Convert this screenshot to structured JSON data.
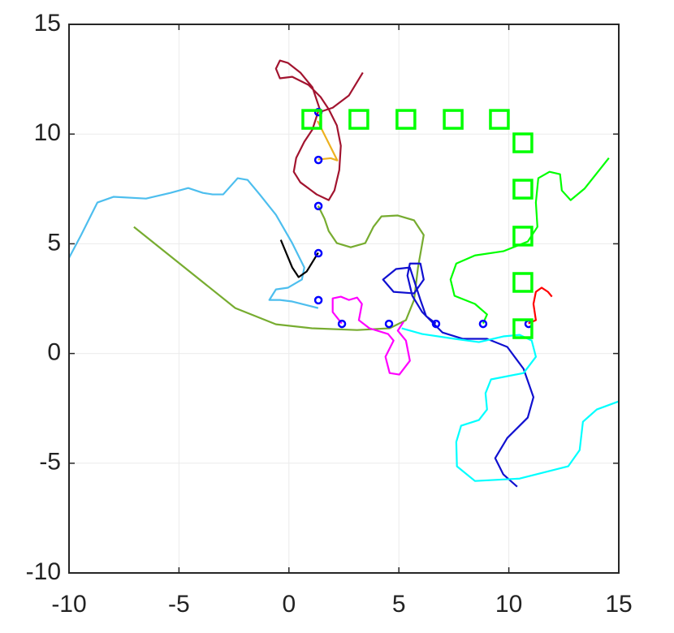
{
  "chart_data": {
    "type": "line",
    "grid": true,
    "xlim": [
      -10,
      15
    ],
    "ylim": [
      -10,
      15
    ],
    "xticks": [
      -10,
      -5,
      0,
      5,
      10,
      15
    ],
    "yticks": [
      -10,
      -5,
      0,
      5,
      10,
      15
    ],
    "series": [
      {
        "color": "#a2142f",
        "marker": "none",
        "x": [
          3.36,
          2.73,
          1.99,
          1.44,
          1.07,
          0.52,
          -0.04,
          -0.41,
          -0.59,
          -0.41,
          0.15,
          0.89,
          1.44,
          1.81,
          2.18,
          2.36,
          2.29,
          2.07,
          1.81,
          1.26,
          0.52,
          0.22,
          0.33,
          0.7,
          1.07,
          1.33
        ],
        "values": [
          12.8,
          11.76,
          11.2,
          11.02,
          12.13,
          12.8,
          13.24,
          13.35,
          12.98,
          12.54,
          12.61,
          12.24,
          11.69,
          11.13,
          10.39,
          9.47,
          8.36,
          7.43,
          6.99,
          7.25,
          7.8,
          8.28,
          8.91,
          9.65,
          10.21,
          11.02
        ]
      },
      {
        "color": "#edb120",
        "marker": "none",
        "x": [
          1.33,
          1.9,
          2.2,
          1.9,
          1.5,
          1.3
        ],
        "values": [
          8.84,
          8.9,
          8.8,
          9.4,
          10.2,
          10.6
        ]
      },
      {
        "color": "#4dbeee",
        "marker": "none",
        "x": [
          -10.0,
          -9.45,
          -8.71,
          -7.98,
          -6.5,
          -5.39,
          -4.58,
          -3.91,
          -3.47,
          -2.99,
          -2.33,
          -1.88,
          -1.33,
          -0.59,
          0.15,
          0.7,
          0.59,
          -0.04,
          -0.59,
          -0.89,
          -0.41,
          0.15,
          1.33
        ],
        "values": [
          4.36,
          5.4,
          6.88,
          7.14,
          7.06,
          7.32,
          7.54,
          7.32,
          7.25,
          7.25,
          7.99,
          7.91,
          7.25,
          6.32,
          5.03,
          3.92,
          3.37,
          3.0,
          2.92,
          2.44,
          2.44,
          2.37,
          2.07
        ]
      },
      {
        "color": "#77ac30",
        "marker": "none",
        "x": [
          -7.05,
          -2.44,
          -0.59,
          1.04,
          3.1,
          4.58,
          5.32,
          5.69,
          5.87,
          6.13,
          5.69,
          4.95,
          4.21,
          3.84,
          3.47,
          2.81,
          2.18,
          1.81,
          1.62,
          1.33
        ],
        "values": [
          5.77,
          2.07,
          1.33,
          1.15,
          1.07,
          1.15,
          1.52,
          2.44,
          3.92,
          5.4,
          6.07,
          6.29,
          6.25,
          5.77,
          5.03,
          4.84,
          5.03,
          5.58,
          6.14,
          6.73
        ]
      },
      {
        "color": "#000000",
        "marker": "none",
        "x": [
          -0.37,
          0.15,
          0.44,
          0.81,
          1.33
        ],
        "values": [
          5.18,
          3.92,
          3.48,
          3.74,
          4.59
        ]
      },
      {
        "color": "#ff00ff",
        "marker": "none",
        "x": [
          2.4,
          1.99,
          1.99,
          2.36,
          2.73,
          3.1,
          3.32,
          3.18,
          3.66,
          4.51,
          4.76,
          4.39,
          4.58,
          5.02,
          5.5,
          5.32,
          4.95,
          5.21
        ],
        "values": [
          1.37,
          1.89,
          2.51,
          2.59,
          2.44,
          2.55,
          2.26,
          1.52,
          1.15,
          0.89,
          0.59,
          -0.15,
          -0.89,
          -0.96,
          -0.33,
          0.59,
          1.04,
          1.44
        ]
      },
      {
        "color": "#1010d0",
        "marker": "none",
        "x": [
          6.68,
          6.24,
          5.98,
          5.5,
          4.87,
          4.28,
          4.76,
          5.69,
          6.13,
          5.98,
          5.5,
          5.39,
          5.61,
          6.06,
          6.98,
          7.9,
          9.01,
          9.93,
          10.67,
          11.12,
          10.86,
          9.93,
          9.38,
          9.75,
          10.38
        ],
        "values": [
          1.37,
          1.7,
          2.44,
          3.92,
          3.85,
          3.37,
          2.81,
          2.74,
          3.37,
          4.1,
          4.1,
          3.55,
          2.63,
          1.89,
          0.96,
          0.67,
          0.67,
          0.3,
          -0.7,
          -1.99,
          -2.92,
          -3.85,
          -4.77,
          -5.51,
          -6.07
        ]
      },
      {
        "color": "#00ffff",
        "marker": "none",
        "x": [
          5.13,
          6.06,
          7.53,
          8.64,
          9.75,
          10.49,
          11.04,
          11.23,
          10.67,
          9.19,
          8.94,
          9.01,
          8.64,
          7.83,
          7.61,
          7.64,
          8.46,
          10.49,
          12.7,
          13.22,
          13.37,
          14.0,
          15.0
        ],
        "values": [
          1.15,
          0.89,
          0.67,
          0.52,
          0.78,
          0.85,
          0.59,
          -0.15,
          -0.89,
          -1.18,
          -1.81,
          -2.55,
          -3.03,
          -3.29,
          -4.03,
          -5.14,
          -5.81,
          -5.7,
          -5.14,
          -4.4,
          -3.11,
          -2.55,
          -2.18
        ]
      },
      {
        "color": "#00ff00",
        "marker": "none",
        "x": [
          8.83,
          9.01,
          8.46,
          7.53,
          7.35,
          7.61,
          8.46,
          9.75,
          10.86,
          11.3,
          11.23,
          11.34,
          11.85,
          12.33,
          12.41,
          12.81,
          13.44,
          14.55
        ],
        "values": [
          1.37,
          1.78,
          2.26,
          2.63,
          3.37,
          4.1,
          4.47,
          4.66,
          5.1,
          5.77,
          6.88,
          7.99,
          8.28,
          8.17,
          7.43,
          6.99,
          7.51,
          8.91
        ]
      },
      {
        "color": "#ff0000",
        "marker": "none",
        "x": [
          10.89,
          11.23,
          11.12,
          11.23,
          11.49,
          11.78,
          11.96
        ],
        "values": [
          1.37,
          1.52,
          2.26,
          2.81,
          3.0,
          2.81,
          2.59
        ]
      },
      {
        "color": "#0000ff",
        "marker": "o",
        "x": [
          1.34,
          1.34,
          1.34,
          1.34,
          1.34,
          2.41,
          4.55,
          6.69,
          8.83,
          10.9
        ],
        "values": [
          11.0,
          8.82,
          6.72,
          4.57,
          2.43,
          1.35,
          1.35,
          1.35,
          1.35,
          1.35
        ]
      },
      {
        "color": "#00ff00",
        "marker": "s",
        "x": [
          1.04,
          3.18,
          5.32,
          7.47,
          9.57,
          10.64,
          10.64,
          10.64,
          10.64,
          10.64
        ],
        "values": [
          10.67,
          10.67,
          10.67,
          10.67,
          10.67,
          9.6,
          7.49,
          5.35,
          3.24,
          1.13
        ]
      }
    ]
  }
}
